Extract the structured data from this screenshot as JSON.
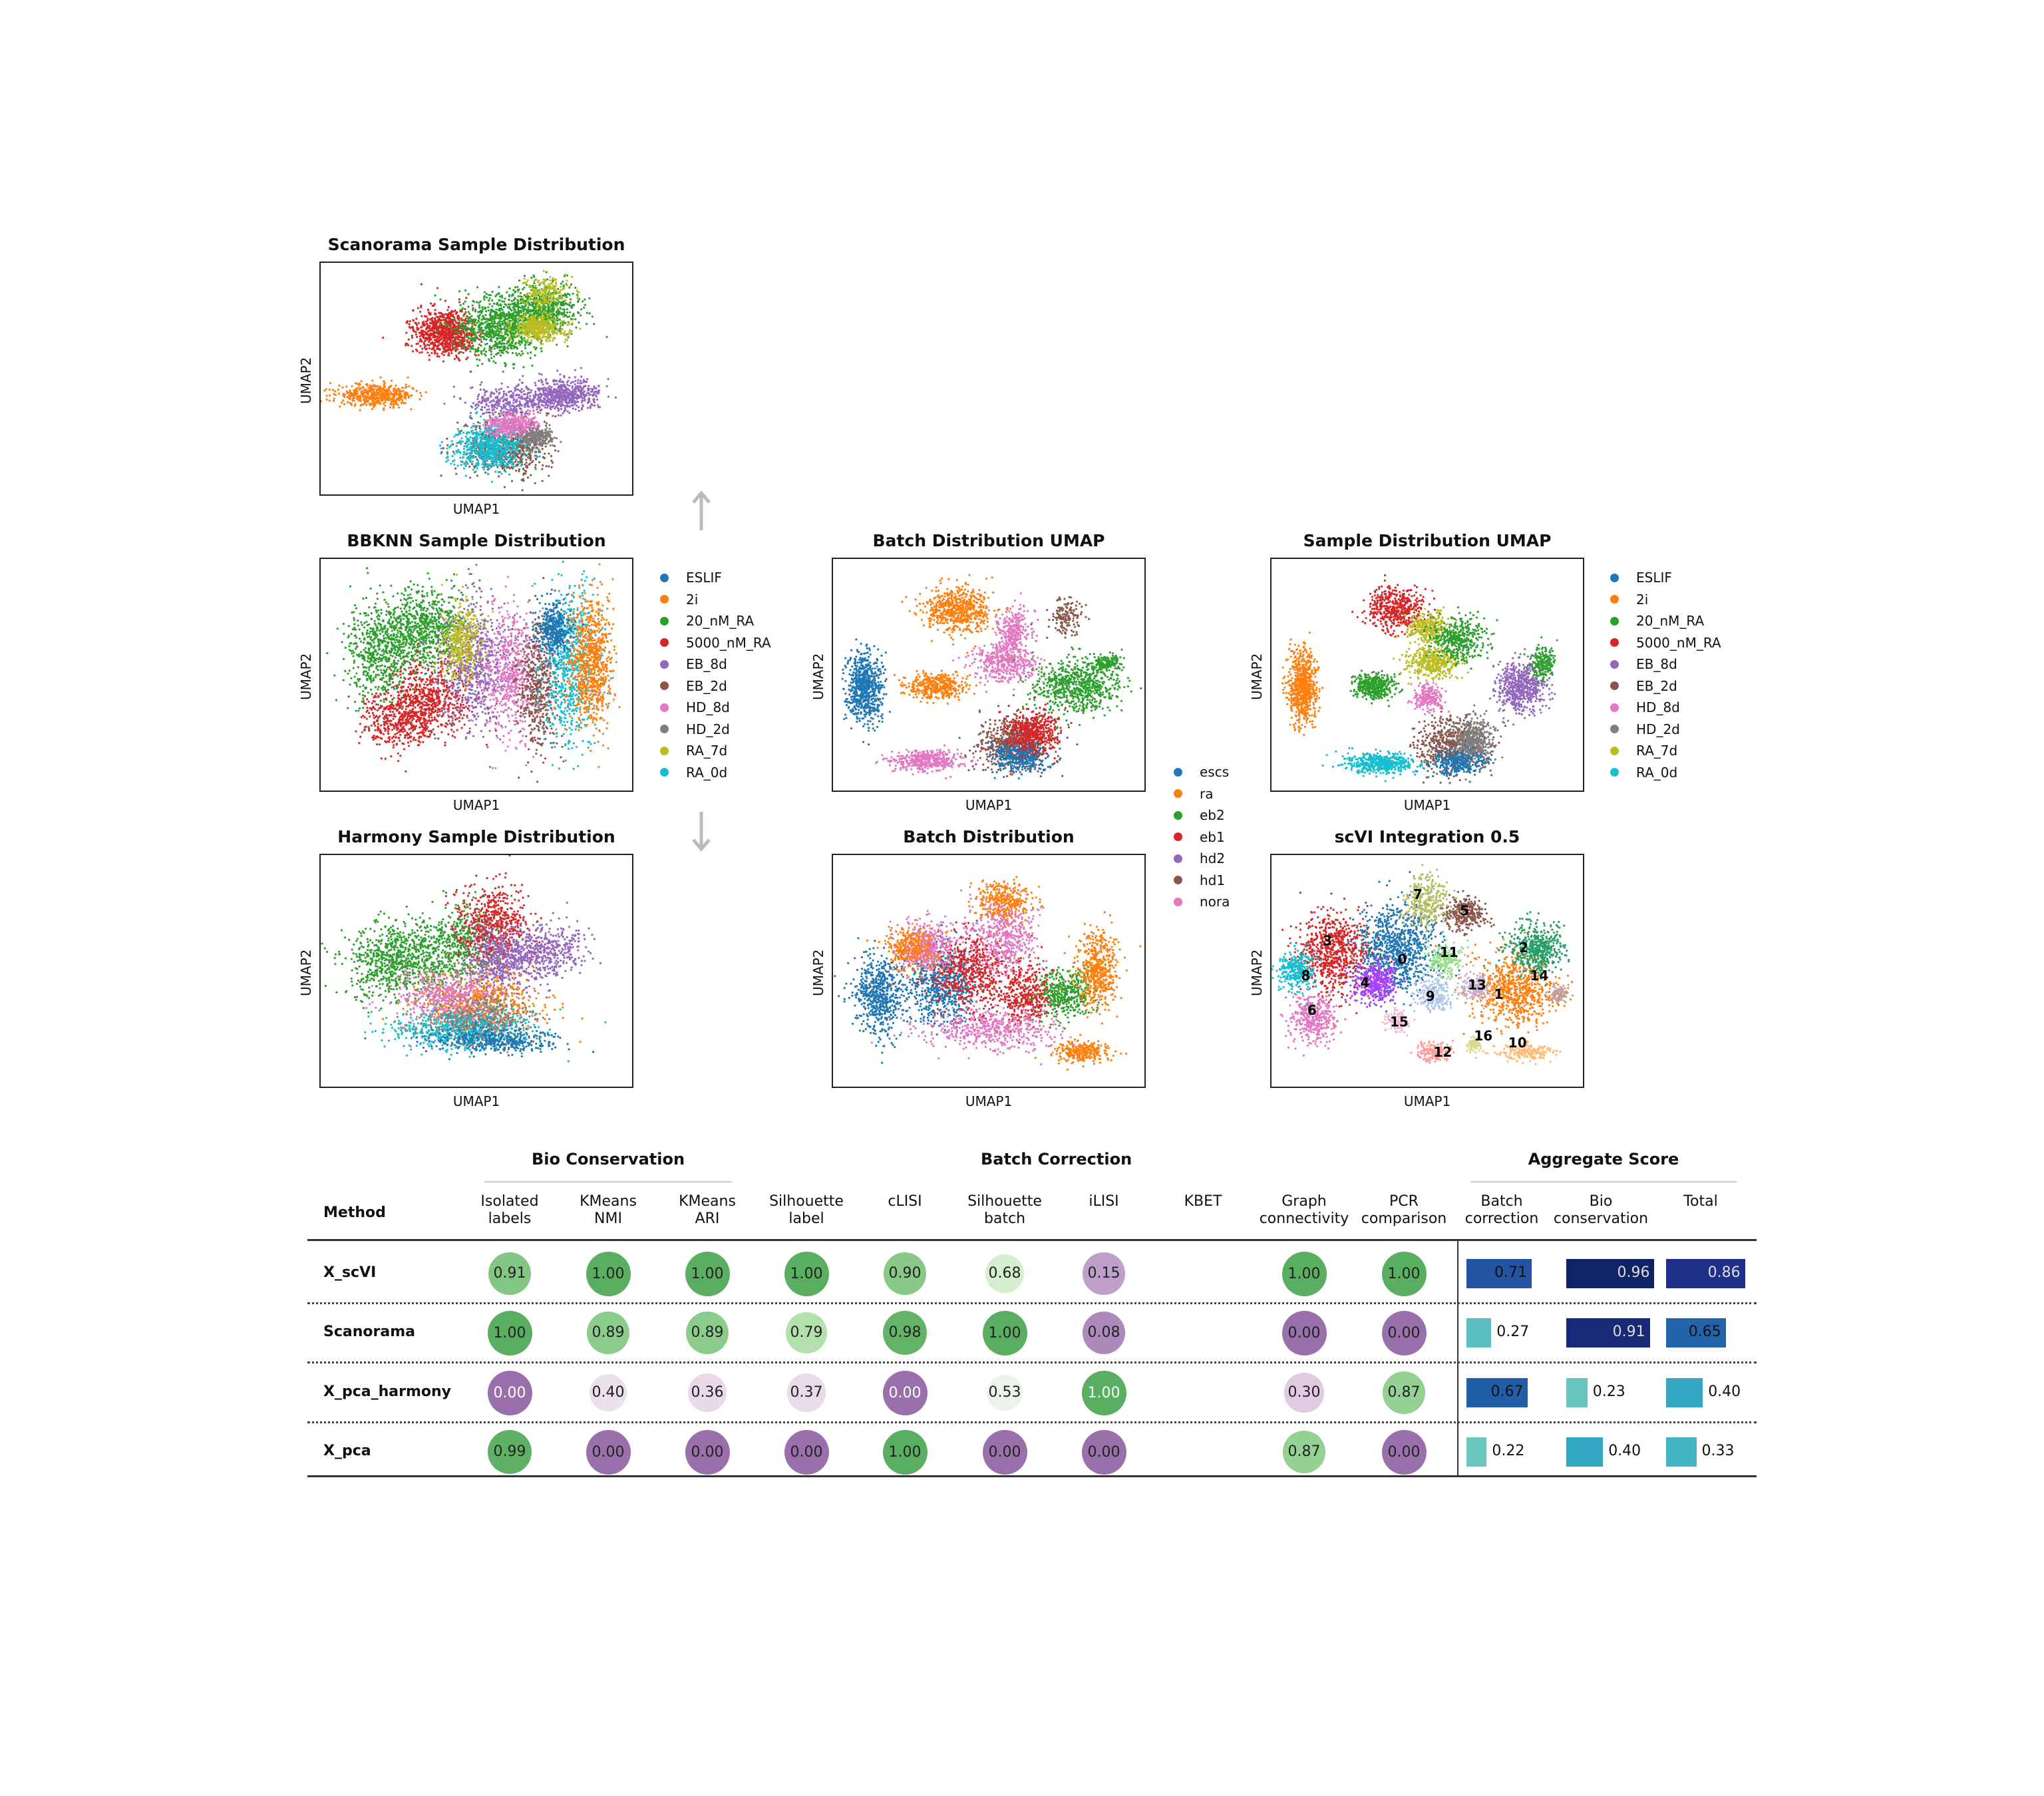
{
  "panels": [
    {
      "id": "scanorama",
      "title": "Scanorama Sample Distribution",
      "xlabel": "UMAP1",
      "ylabel": "UMAP2"
    },
    {
      "id": "bbknn",
      "title": "BBKNN Sample Distribution",
      "xlabel": "UMAP1",
      "ylabel": "UMAP2"
    },
    {
      "id": "harmony",
      "title": "Harmony Sample Distribution",
      "xlabel": "UMAP1",
      "ylabel": "UMAP2"
    },
    {
      "id": "batchumap",
      "title": "Batch Distribution UMAP",
      "xlabel": "UMAP1",
      "ylabel": "UMAP2"
    },
    {
      "id": "batchdist",
      "title": "Batch Distribution",
      "xlabel": "UMAP1",
      "ylabel": "UMAP2"
    },
    {
      "id": "sampleumap",
      "title": "Sample Distribution UMAP",
      "xlabel": "UMAP1",
      "ylabel": "UMAP2"
    },
    {
      "id": "scvi",
      "title": "scVI Integration 0.5",
      "xlabel": "UMAP1",
      "ylabel": "UMAP2"
    }
  ],
  "sample_legend": [
    {
      "label": "ESLIF",
      "color": "#1f77b4"
    },
    {
      "label": "2i",
      "color": "#ff7f0e"
    },
    {
      "label": "20_nM_RA",
      "color": "#2ca02c"
    },
    {
      "label": "5000_nM_RA",
      "color": "#d62728"
    },
    {
      "label": "EB_8d",
      "color": "#9467bd"
    },
    {
      "label": "EB_2d",
      "color": "#8c564b"
    },
    {
      "label": "HD_8d",
      "color": "#e377c2"
    },
    {
      "label": "HD_2d",
      "color": "#7f7f7f"
    },
    {
      "label": "RA_7d",
      "color": "#bcbd22"
    },
    {
      "label": "RA_0d",
      "color": "#17becf"
    }
  ],
  "batch_legend": [
    {
      "label": "escs",
      "color": "#1f77b4"
    },
    {
      "label": "ra",
      "color": "#ff7f0e"
    },
    {
      "label": "eb2",
      "color": "#2ca02c"
    },
    {
      "label": "eb1",
      "color": "#d62728"
    },
    {
      "label": "hd2",
      "color": "#9467bd"
    },
    {
      "label": "hd1",
      "color": "#8c564b"
    },
    {
      "label": "nora",
      "color": "#e377c2"
    }
  ],
  "cluster_labels": [
    "0",
    "1",
    "2",
    "3",
    "4",
    "5",
    "6",
    "7",
    "8",
    "9",
    "10",
    "11",
    "12",
    "13",
    "14",
    "15",
    "16"
  ],
  "chart_data": {
    "type": "table",
    "groups": [
      {
        "title": "Bio Conservation",
        "columns": [
          "Isolated\nlabels",
          "KMeans\nNMI",
          "KMeans\nARI",
          "Silhouette\nlabel",
          "cLISI"
        ]
      },
      {
        "title": "Batch Correction",
        "columns": [
          "Silhouette\nbatch",
          "iLISI",
          "KBET",
          "Graph\nconnectivity",
          "PCR\ncomparison"
        ]
      },
      {
        "title": "Aggregate Score",
        "columns": [
          "Batch\ncorrection",
          "Bio\nconservation",
          "Total"
        ]
      }
    ],
    "method_header": "Method",
    "rows": [
      {
        "method": "X_scVI",
        "metrics": [
          "0.91",
          "1.00",
          "1.00",
          "1.00",
          "0.90",
          "0.68",
          "0.15",
          "",
          "1.00",
          "1.00"
        ],
        "aggregate": [
          "0.71",
          "0.96",
          "0.86"
        ]
      },
      {
        "method": "Scanorama",
        "metrics": [
          "1.00",
          "0.89",
          "0.89",
          "0.79",
          "0.98",
          "1.00",
          "0.08",
          "",
          "0.00",
          "0.00"
        ],
        "aggregate": [
          "0.27",
          "0.91",
          "0.65"
        ]
      },
      {
        "method": "X_pca_harmony",
        "metrics": [
          "0.00",
          "0.40",
          "0.36",
          "0.37",
          "0.00",
          "0.53",
          "1.00",
          "",
          "0.30",
          "0.87"
        ],
        "aggregate": [
          "0.67",
          "0.23",
          "0.40"
        ]
      },
      {
        "method": "X_pca",
        "metrics": [
          "0.99",
          "0.00",
          "0.00",
          "0.00",
          "1.00",
          "0.00",
          "0.00",
          "",
          "0.87",
          "0.00"
        ],
        "aggregate": [
          "0.22",
          "0.40",
          "0.33"
        ]
      }
    ]
  }
}
